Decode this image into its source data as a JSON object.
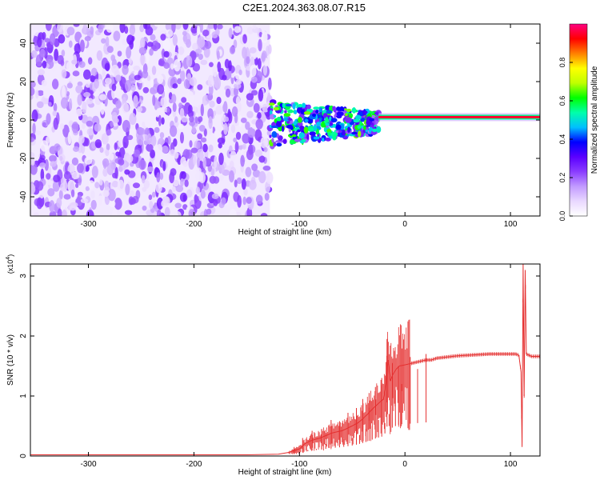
{
  "title": "C2E1.2024.363.08.07.R15",
  "colors": {
    "snr_line": "#e53030",
    "frame": "#000000",
    "colormap": [
      "#ffffff",
      "#e9d8ff",
      "#c29bff",
      "#8a3cff",
      "#5b00ff",
      "#0000ff",
      "#00bfff",
      "#00ffaa",
      "#00ff00",
      "#bfff00",
      "#ffff00",
      "#ff8000",
      "#ff0000",
      "#ff0080"
    ]
  },
  "chart_data": [
    {
      "type": "heatmap",
      "xlabel": "Height of straight line (km)",
      "ylabel": "Frequency (Hz)",
      "xlim": [
        -355,
        128
      ],
      "ylim": [
        -50,
        50
      ],
      "xticks": [
        {
          "v": -300,
          "label": "-300"
        },
        {
          "v": -200,
          "label": "-200"
        },
        {
          "v": -100,
          "label": "-100"
        },
        {
          "v": 0,
          "label": "0"
        },
        {
          "v": 100,
          "label": "100"
        }
      ],
      "yticks": [
        {
          "v": -40,
          "label": "-40"
        },
        {
          "v": -20,
          "label": "-20"
        },
        {
          "v": 0,
          "label": "0"
        },
        {
          "v": 20,
          "label": "20"
        },
        {
          "v": 40,
          "label": "40"
        }
      ],
      "regions": [
        {
          "x_range": [
            -355,
            -128
          ],
          "y_range": [
            -50,
            50
          ],
          "amplitude": 0.15,
          "pattern": "broadband noise"
        },
        {
          "x_range": [
            -128,
            -25
          ],
          "y_range": [
            -12,
            12
          ],
          "amplitude": 0.45,
          "pattern": "scattered band around 0 Hz"
        },
        {
          "x_range": [
            -25,
            128
          ],
          "y_range": [
            0,
            3
          ],
          "amplitude": 0.95,
          "pattern": "narrow carrier line near 1-2 Hz"
        }
      ],
      "colorbar": {
        "label": "Normalized spectral amplitude",
        "range": [
          0,
          1
        ],
        "ticks": [
          {
            "v": 0.0,
            "label": "0.0"
          },
          {
            "v": 0.2,
            "label": "0.2"
          },
          {
            "v": 0.4,
            "label": "0.4"
          },
          {
            "v": 0.6,
            "label": "0.6"
          },
          {
            "v": 0.8,
            "label": "0.8"
          }
        ]
      }
    },
    {
      "type": "line",
      "xlabel": "Height of straight line (km)",
      "ylabel": "SNR (10 * v/v)",
      "multiplier_label": "(x10",
      "multiplier_exp": "4",
      "multiplier_close": ")",
      "xlim": [
        -355,
        128
      ],
      "ylim": [
        0,
        3.2
      ],
      "xticks": [
        {
          "v": -300,
          "label": "-300"
        },
        {
          "v": -200,
          "label": "-200"
        },
        {
          "v": -100,
          "label": "-100"
        },
        {
          "v": 0,
          "label": "0"
        },
        {
          "v": 100,
          "label": "100"
        }
      ],
      "yticks": [
        {
          "v": 0,
          "label": "0"
        },
        {
          "v": 1,
          "label": "1"
        },
        {
          "v": 2,
          "label": "2"
        },
        {
          "v": 3,
          "label": "3"
        }
      ],
      "series": [
        {
          "color": "#e53030",
          "x": [
            -355,
            -300,
            -250,
            -200,
            -150,
            -120,
            -110,
            -100,
            -95,
            -90,
            -85,
            -80,
            -75,
            -70,
            -65,
            -60,
            -55,
            -50,
            -45,
            -40,
            -35,
            -30,
            -25,
            -20,
            -18,
            -16,
            -14,
            -12,
            -10,
            -8,
            -5,
            0,
            5,
            10,
            15,
            20,
            25,
            30,
            40,
            50,
            60,
            70,
            80,
            90,
            100,
            105,
            108,
            110,
            111,
            112,
            113,
            114,
            115,
            120,
            128
          ],
          "y": [
            0.02,
            0.02,
            0.02,
            0.02,
            0.02,
            0.03,
            0.06,
            0.12,
            0.2,
            0.25,
            0.28,
            0.3,
            0.34,
            0.38,
            0.4,
            0.42,
            0.46,
            0.5,
            0.55,
            0.62,
            0.7,
            0.8,
            0.88,
            0.95,
            1.2,
            1.6,
            1.25,
            1.35,
            1.4,
            1.45,
            1.5,
            1.52,
            1.54,
            1.56,
            1.58,
            1.6,
            1.6,
            1.63,
            1.65,
            1.67,
            1.68,
            1.69,
            1.7,
            1.7,
            1.7,
            1.7,
            1.68,
            1.4,
            0.15,
            3.2,
            1.0,
            3.1,
            1.7,
            1.66,
            1.66
          ],
          "spikes": [
            {
              "x": -105,
              "y": 0.15
            },
            {
              "x": -97,
              "y": 0.3
            },
            {
              "x": -92,
              "y": 0.1
            },
            {
              "x": -88,
              "y": 0.42
            },
            {
              "x": -84,
              "y": 0.12
            },
            {
              "x": -79,
              "y": 0.45
            },
            {
              "x": -75,
              "y": 0.2
            },
            {
              "x": -70,
              "y": 0.6
            },
            {
              "x": -66,
              "y": 0.25
            },
            {
              "x": -62,
              "y": 0.58
            },
            {
              "x": -58,
              "y": 0.28
            },
            {
              "x": -54,
              "y": 0.72
            },
            {
              "x": -50,
              "y": 0.3
            },
            {
              "x": -46,
              "y": 0.8
            },
            {
              "x": -43,
              "y": 0.35
            },
            {
              "x": -40,
              "y": 0.95
            },
            {
              "x": -37,
              "y": 0.45
            },
            {
              "x": -34,
              "y": 1.05
            },
            {
              "x": -31,
              "y": 0.5
            },
            {
              "x": -28,
              "y": 1.15
            },
            {
              "x": -25,
              "y": 0.6
            },
            {
              "x": -22,
              "y": 1.3
            },
            {
              "x": -19,
              "y": 0.55
            },
            {
              "x": -17,
              "y": 1.95
            },
            {
              "x": -15,
              "y": 0.7
            },
            {
              "x": -12,
              "y": 1.55
            },
            {
              "x": -9,
              "y": 1.1
            },
            {
              "x": -6,
              "y": 1.5
            },
            {
              "x": -3,
              "y": 1.2
            },
            {
              "x": 5,
              "y": 1.65
            },
            {
              "x": 12,
              "y": 1.45
            },
            {
              "x": 20,
              "y": 1.7
            }
          ]
        }
      ]
    }
  ]
}
